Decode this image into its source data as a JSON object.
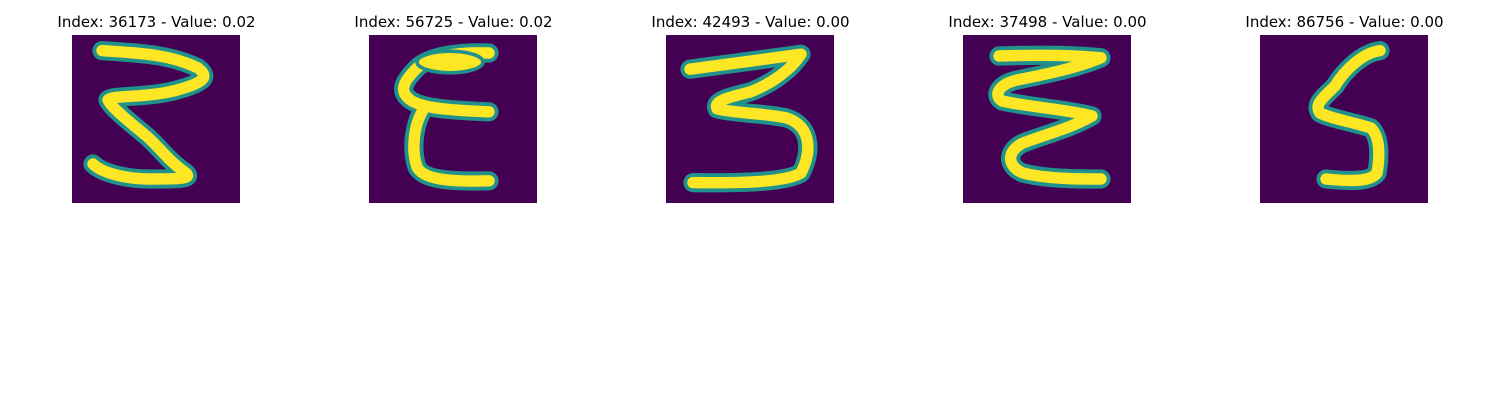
{
  "panels": [
    {
      "title": "Index: 36173 - Value: 0.02",
      "depicts": "handwritten-3-glyph"
    },
    {
      "title": "Index: 56725 - Value: 0.02",
      "depicts": "handwritten-E-glyph"
    },
    {
      "title": "Index: 42493 - Value: 0.00",
      "depicts": "handwritten-3-glyph"
    },
    {
      "title": "Index: 37498 - Value: 0.00",
      "depicts": "handwritten-3-glyph"
    },
    {
      "title": "Index: 86756 - Value: 0.00",
      "depicts": "handwritten-5-glyph"
    }
  ],
  "colors": {
    "background": "#440154",
    "stroke_edge": "#21918c",
    "stroke_core": "#fde725"
  }
}
